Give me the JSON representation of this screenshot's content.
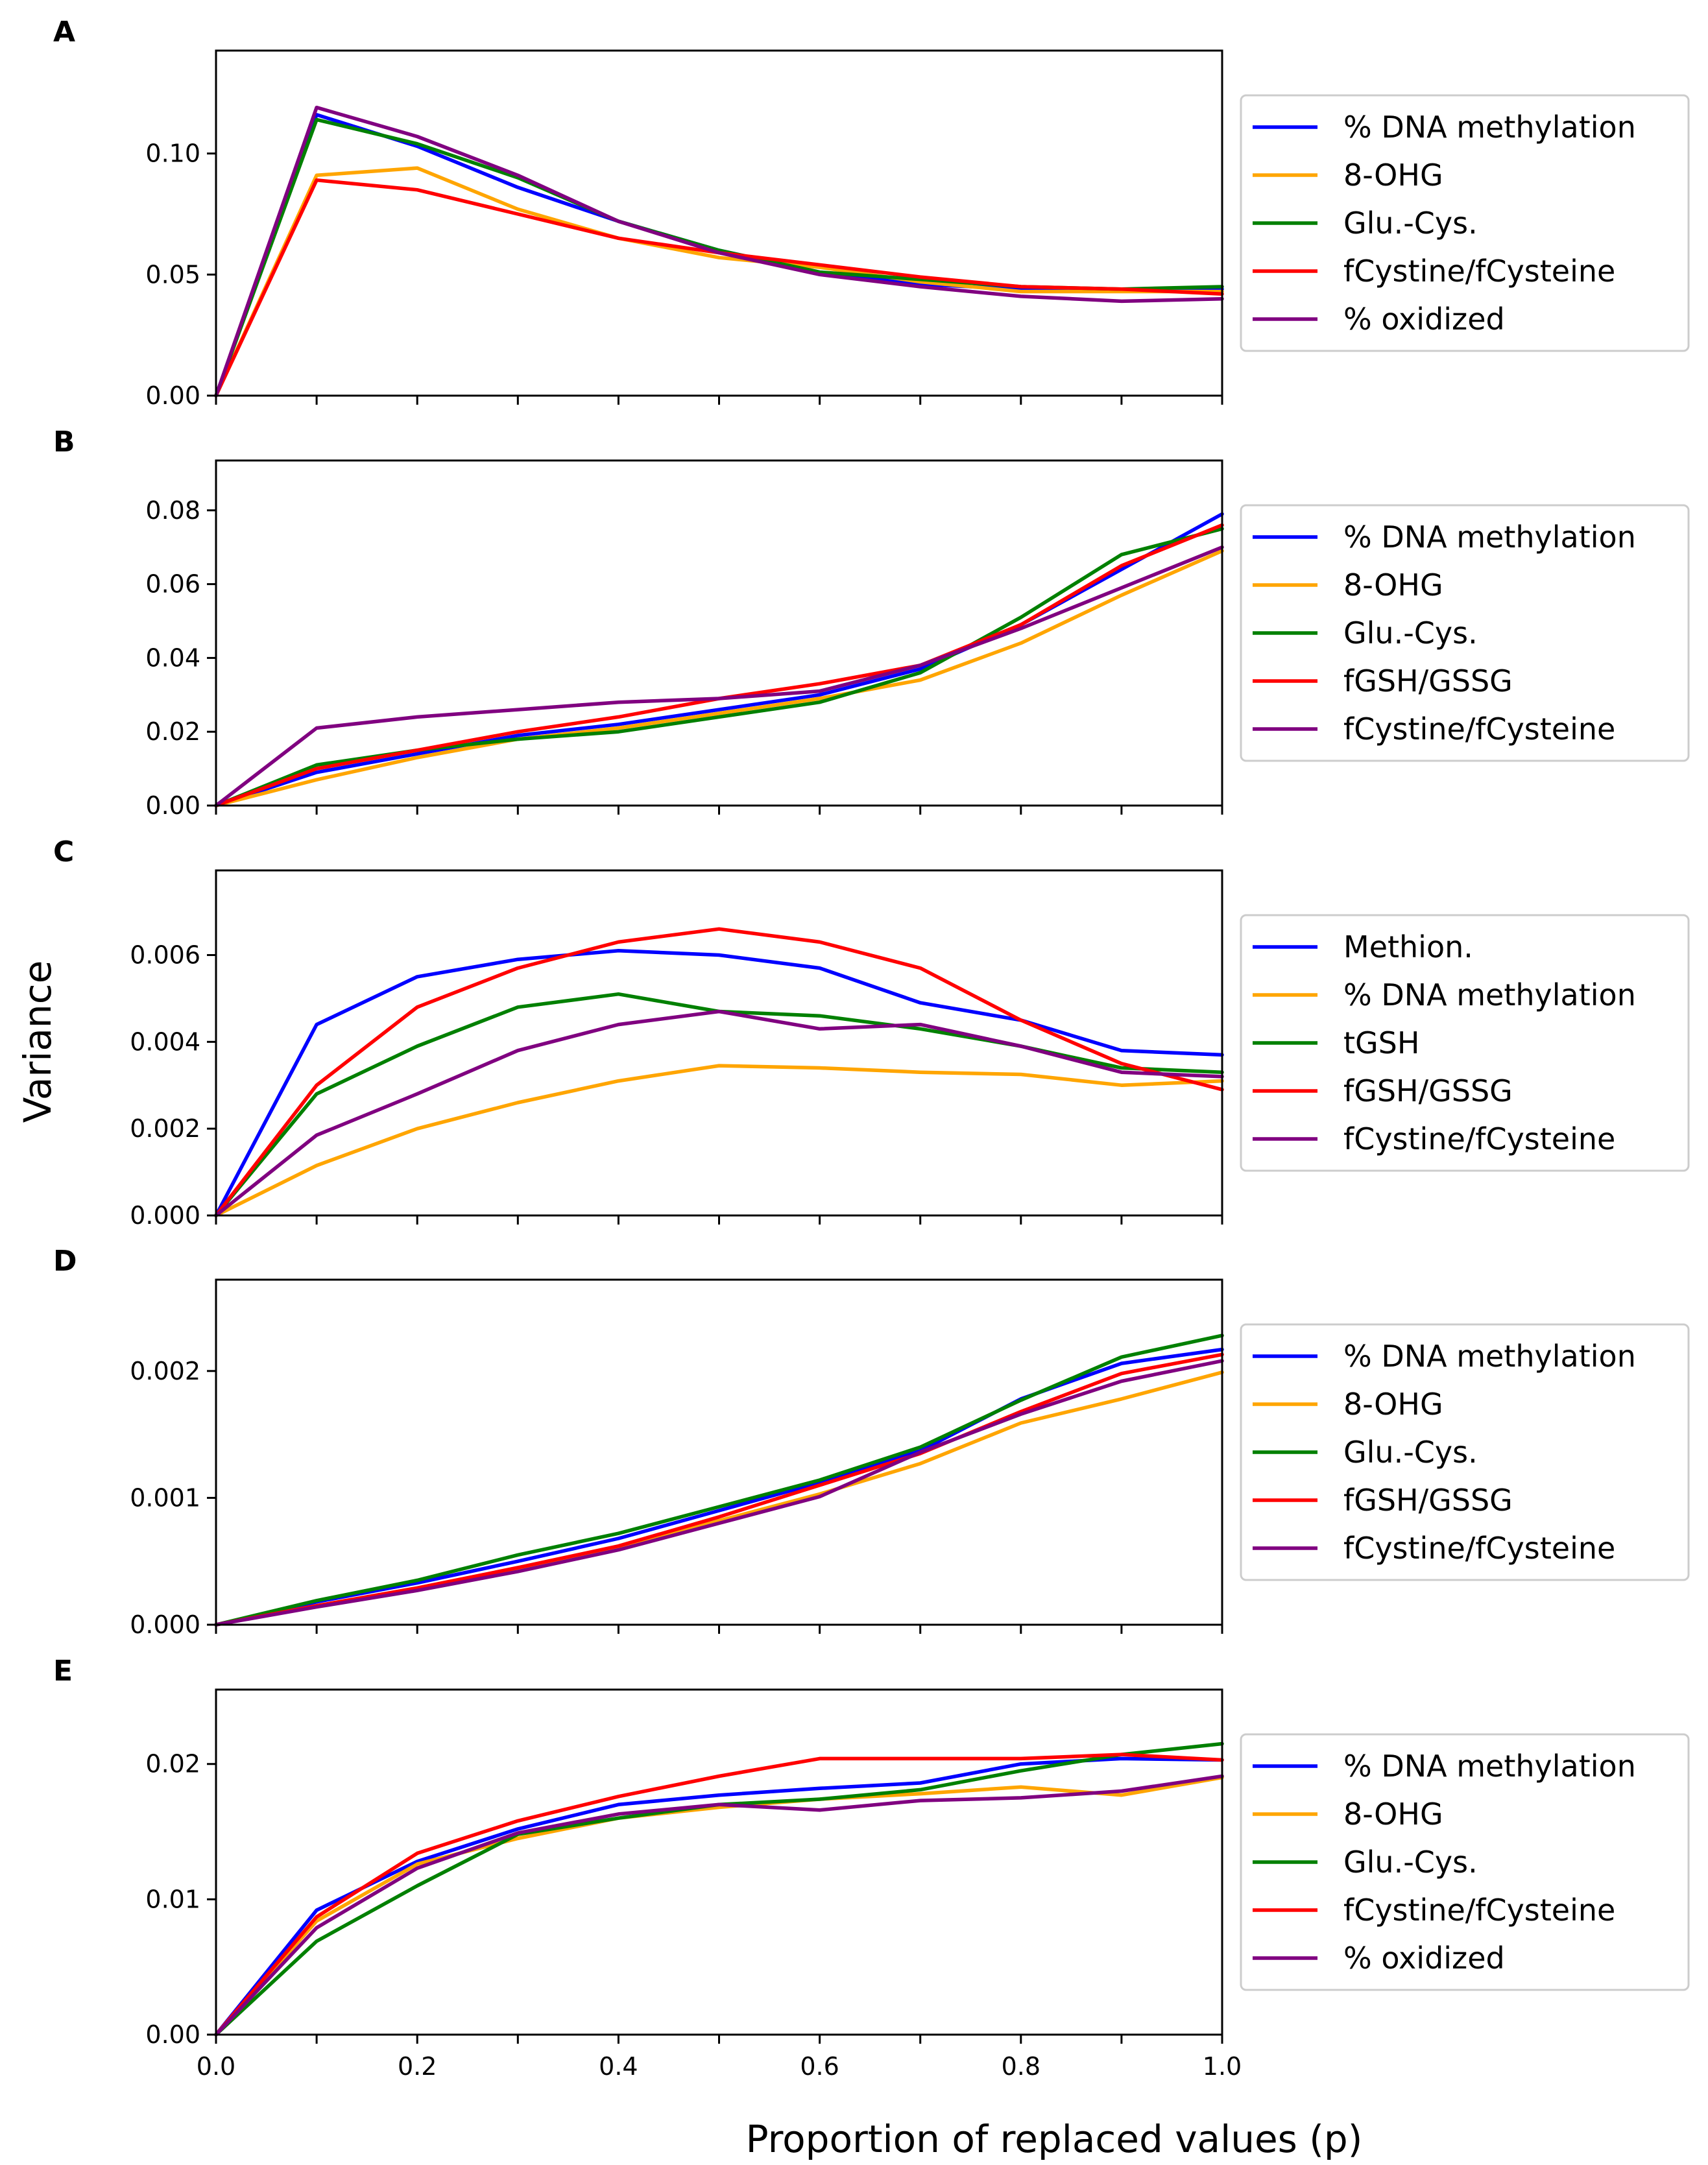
{
  "figure": {
    "xlabel": "Proportion of replaced values (p)",
    "ylabel": "Variance"
  },
  "colors": {
    "blue": "#0000ff",
    "orange": "#ffa500",
    "green": "#008000",
    "red": "#ff0000",
    "purple": "#800080",
    "frame": "#000000",
    "legend_border": "#cccccc"
  },
  "chart_data": [
    {
      "type": "line",
      "panel": "A",
      "x": [
        0,
        0.1,
        0.2,
        0.3,
        0.4,
        0.5,
        0.6,
        0.7,
        0.8,
        0.9,
        1.0
      ],
      "xlim": [
        0,
        1
      ],
      "ylim": [
        0,
        0.1425
      ],
      "yticks": [
        0,
        0.05,
        0.1
      ],
      "ytick_labels": [
        "0.00",
        "0.05",
        "0.10"
      ],
      "legend_position": "right",
      "series": [
        {
          "name": "% DNA methylation",
          "color": "blue",
          "values": [
            0,
            0.116,
            0.103,
            0.086,
            0.072,
            0.06,
            0.051,
            0.046,
            0.044,
            0.044,
            0.044
          ]
        },
        {
          "name": "8-OHG",
          "color": "orange",
          "values": [
            0,
            0.091,
            0.094,
            0.077,
            0.065,
            0.057,
            0.053,
            0.047,
            0.043,
            0.043,
            0.043
          ]
        },
        {
          "name": "Glu.-Cys.",
          "color": "green",
          "values": [
            0,
            0.114,
            0.104,
            0.09,
            0.072,
            0.06,
            0.051,
            0.048,
            0.045,
            0.044,
            0.045
          ]
        },
        {
          "name": "fCystine/fCysteine",
          "color": "red",
          "values": [
            0,
            0.089,
            0.085,
            0.075,
            0.065,
            0.059,
            0.054,
            0.049,
            0.045,
            0.044,
            0.042
          ]
        },
        {
          "name": "% oxidized",
          "color": "purple",
          "values": [
            0,
            0.119,
            0.107,
            0.091,
            0.072,
            0.059,
            0.05,
            0.045,
            0.041,
            0.039,
            0.04
          ]
        }
      ]
    },
    {
      "type": "line",
      "panel": "B",
      "x": [
        0,
        0.1,
        0.2,
        0.3,
        0.4,
        0.5,
        0.6,
        0.7,
        0.8,
        0.9,
        1.0
      ],
      "xlim": [
        0,
        1
      ],
      "ylim": [
        0,
        0.0935
      ],
      "yticks": [
        0,
        0.02,
        0.04,
        0.06,
        0.08
      ],
      "ytick_labels": [
        "0.00",
        "0.02",
        "0.04",
        "0.06",
        "0.08"
      ],
      "legend_position": "right",
      "series": [
        {
          "name": "% DNA methylation",
          "color": "blue",
          "values": [
            0,
            0.009,
            0.014,
            0.019,
            0.022,
            0.026,
            0.03,
            0.037,
            0.049,
            0.064,
            0.079
          ]
        },
        {
          "name": "8-OHG",
          "color": "orange",
          "values": [
            0,
            0.007,
            0.013,
            0.018,
            0.021,
            0.025,
            0.029,
            0.034,
            0.044,
            0.057,
            0.069
          ]
        },
        {
          "name": "Glu.-Cys.",
          "color": "green",
          "values": [
            0,
            0.011,
            0.015,
            0.018,
            0.02,
            0.024,
            0.028,
            0.036,
            0.051,
            0.068,
            0.075
          ]
        },
        {
          "name": "fGSH/GSSG",
          "color": "red",
          "values": [
            0,
            0.01,
            0.015,
            0.02,
            0.024,
            0.029,
            0.033,
            0.038,
            0.049,
            0.065,
            0.076
          ]
        },
        {
          "name": "fCystine/fCysteine",
          "color": "purple",
          "values": [
            0,
            0.021,
            0.024,
            0.026,
            0.028,
            0.029,
            0.031,
            0.038,
            0.048,
            0.059,
            0.07
          ]
        }
      ]
    },
    {
      "type": "line",
      "panel": "C",
      "x": [
        0,
        0.1,
        0.2,
        0.3,
        0.4,
        0.5,
        0.6,
        0.7,
        0.8,
        0.9,
        1.0
      ],
      "xlim": [
        0,
        1
      ],
      "ylim": [
        0,
        0.00795
      ],
      "yticks": [
        0,
        0.002,
        0.004,
        0.006
      ],
      "ytick_labels": [
        "0.000",
        "0.002",
        "0.004",
        "0.006"
      ],
      "legend_position": "right",
      "series": [
        {
          "name": "Methion.",
          "color": "blue",
          "values": [
            0,
            0.0044,
            0.0055,
            0.0059,
            0.0061,
            0.006,
            0.0057,
            0.0049,
            0.0045,
            0.0038,
            0.0037
          ]
        },
        {
          "name": "% DNA methylation",
          "color": "orange",
          "values": [
            0,
            0.00115,
            0.002,
            0.0026,
            0.0031,
            0.00345,
            0.0034,
            0.0033,
            0.00325,
            0.003,
            0.0031
          ]
        },
        {
          "name": "tGSH",
          "color": "green",
          "values": [
            0,
            0.0028,
            0.0039,
            0.0048,
            0.0051,
            0.0047,
            0.0046,
            0.0043,
            0.0039,
            0.0034,
            0.0033
          ]
        },
        {
          "name": "fGSH/GSSG",
          "color": "red",
          "values": [
            0,
            0.003,
            0.0048,
            0.0057,
            0.0063,
            0.0066,
            0.0063,
            0.0057,
            0.0045,
            0.0035,
            0.0029
          ]
        },
        {
          "name": "fCystine/fCysteine",
          "color": "purple",
          "values": [
            0,
            0.00185,
            0.0028,
            0.0038,
            0.0044,
            0.0047,
            0.0043,
            0.0044,
            0.0039,
            0.0033,
            0.0032
          ]
        }
      ]
    },
    {
      "type": "line",
      "panel": "D",
      "x": [
        0,
        0.1,
        0.2,
        0.3,
        0.4,
        0.5,
        0.6,
        0.7,
        0.8,
        0.9,
        1.0
      ],
      "xlim": [
        0,
        1
      ],
      "ylim": [
        0,
        0.00272
      ],
      "yticks": [
        0,
        0.001,
        0.002
      ],
      "ytick_labels": [
        "0.000",
        "0.001",
        "0.002"
      ],
      "legend_position": "right",
      "series": [
        {
          "name": "% DNA methylation",
          "color": "blue",
          "values": [
            0,
            0.00018,
            0.00033,
            0.0005,
            0.00068,
            0.0009,
            0.00112,
            0.00137,
            0.00178,
            0.00206,
            0.00217
          ]
        },
        {
          "name": "8-OHG",
          "color": "orange",
          "values": [
            0,
            0.00015,
            0.00028,
            0.00043,
            0.0006,
            0.00082,
            0.00103,
            0.00127,
            0.00159,
            0.00178,
            0.00199
          ]
        },
        {
          "name": "Glu.-Cys.",
          "color": "green",
          "values": [
            0,
            0.00019,
            0.00035,
            0.00055,
            0.00072,
            0.00093,
            0.00114,
            0.0014,
            0.00177,
            0.00211,
            0.00228
          ]
        },
        {
          "name": "fGSH/GSSG",
          "color": "red",
          "values": [
            0,
            0.00015,
            0.00029,
            0.00045,
            0.00062,
            0.00085,
            0.0011,
            0.00135,
            0.00168,
            0.00198,
            0.00213
          ]
        },
        {
          "name": "fCystine/fCysteine",
          "color": "purple",
          "values": [
            0,
            0.00014,
            0.00027,
            0.00042,
            0.00059,
            0.0008,
            0.00101,
            0.00136,
            0.00166,
            0.00192,
            0.00208
          ]
        }
      ]
    },
    {
      "type": "line",
      "panel": "E",
      "x": [
        0,
        0.1,
        0.2,
        0.3,
        0.4,
        0.5,
        0.6,
        0.7,
        0.8,
        0.9,
        1.0
      ],
      "xlim": [
        0,
        1
      ],
      "xticks": [
        0,
        0.2,
        0.4,
        0.6,
        0.8,
        1.0
      ],
      "xtick_labels": [
        "0.0",
        "0.2",
        "0.4",
        "0.6",
        "0.8",
        "1.0"
      ],
      "ylim": [
        0,
        0.0255
      ],
      "yticks": [
        0,
        0.01,
        0.02
      ],
      "ytick_labels": [
        "0.00",
        "0.01",
        "0.02"
      ],
      "legend_position": "right",
      "series": [
        {
          "name": "% DNA methylation",
          "color": "blue",
          "values": [
            0,
            0.0092,
            0.0128,
            0.0152,
            0.017,
            0.0177,
            0.0182,
            0.0186,
            0.02,
            0.0204,
            0.0203
          ]
        },
        {
          "name": "8-OHG",
          "color": "orange",
          "values": [
            0,
            0.0084,
            0.0126,
            0.0145,
            0.016,
            0.0168,
            0.0174,
            0.0178,
            0.0183,
            0.0177,
            0.019
          ]
        },
        {
          "name": "Glu.-Cys.",
          "color": "green",
          "values": [
            0,
            0.0069,
            0.011,
            0.0148,
            0.016,
            0.017,
            0.0174,
            0.0181,
            0.0195,
            0.0207,
            0.0215
          ]
        },
        {
          "name": "fCystine/fCysteine",
          "color": "red",
          "values": [
            0,
            0.0087,
            0.0134,
            0.0158,
            0.0176,
            0.0191,
            0.0204,
            0.0204,
            0.0204,
            0.0207,
            0.0203
          ]
        },
        {
          "name": "% oxidized",
          "color": "purple",
          "values": [
            0,
            0.0079,
            0.0123,
            0.0149,
            0.0163,
            0.017,
            0.0166,
            0.0173,
            0.0175,
            0.018,
            0.0191
          ]
        }
      ]
    }
  ]
}
